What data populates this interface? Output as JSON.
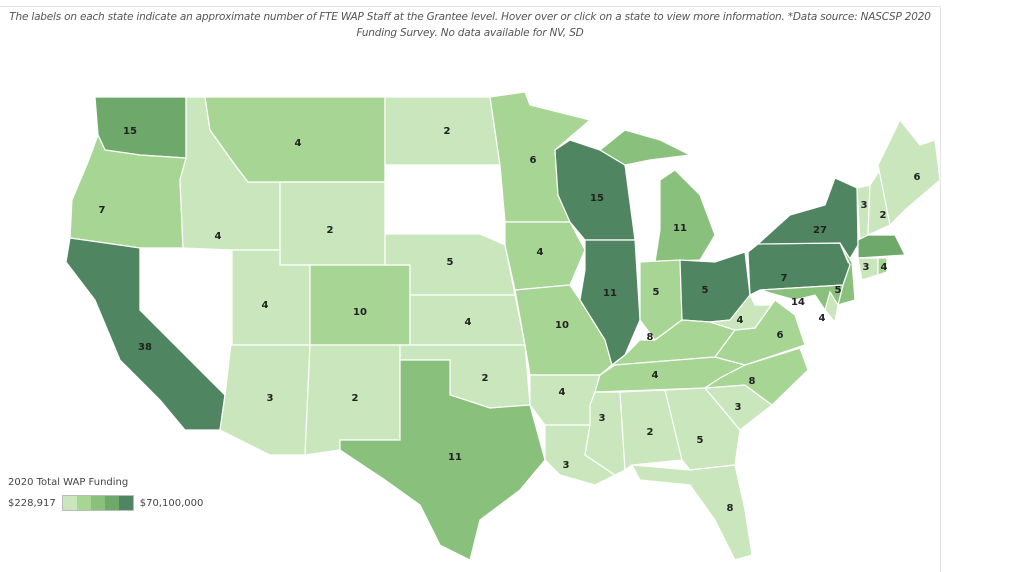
{
  "caption": "The labels on each state indicate an approximate number of FTE WAP Staff at the Grantee level. Hover over or click on a state to view more information. *Data source: NASCSP 2020 Funding Survey. No data available for NV, SD",
  "legend": {
    "title": "2020 Total WAP Funding",
    "min_label": "$228,917",
    "max_label": "$70,100,000",
    "colors": [
      "#c9e6bc",
      "#a6d594",
      "#89c07b",
      "#6ea86b",
      "#4f8560"
    ]
  },
  "no_data_color": "#ffffff",
  "states": [
    {
      "abbr": "WA",
      "label": "15",
      "level": 4
    },
    {
      "abbr": "OR",
      "label": "7",
      "level": 2
    },
    {
      "abbr": "CA",
      "label": "38",
      "level": 5
    },
    {
      "abbr": "NV",
      "label": "",
      "level": 0
    },
    {
      "abbr": "ID",
      "label": "4",
      "level": 1
    },
    {
      "abbr": "MT",
      "label": "4",
      "level": 2
    },
    {
      "abbr": "WY",
      "label": "2",
      "level": 1
    },
    {
      "abbr": "UT",
      "label": "4",
      "level": 1
    },
    {
      "abbr": "CO",
      "label": "10",
      "level": 2
    },
    {
      "abbr": "AZ",
      "label": "3",
      "level": 1
    },
    {
      "abbr": "NM",
      "label": "2",
      "level": 1
    },
    {
      "abbr": "ND",
      "label": "2",
      "level": 1
    },
    {
      "abbr": "SD",
      "label": "",
      "level": 0
    },
    {
      "abbr": "NE",
      "label": "5",
      "level": 1
    },
    {
      "abbr": "KS",
      "label": "4",
      "level": 1
    },
    {
      "abbr": "OK",
      "label": "2",
      "level": 1
    },
    {
      "abbr": "TX",
      "label": "11",
      "level": 3
    },
    {
      "abbr": "MN",
      "label": "6",
      "level": 2
    },
    {
      "abbr": "IA",
      "label": "4",
      "level": 2
    },
    {
      "abbr": "MO",
      "label": "10",
      "level": 2
    },
    {
      "abbr": "AR",
      "label": "4",
      "level": 1
    },
    {
      "abbr": "LA",
      "label": "3",
      "level": 1
    },
    {
      "abbr": "WI",
      "label": "15",
      "level": 5
    },
    {
      "abbr": "IL",
      "label": "11",
      "level": 5
    },
    {
      "abbr": "MI",
      "label": "11",
      "level": 3
    },
    {
      "abbr": "IN",
      "label": "5",
      "level": 2
    },
    {
      "abbr": "OH",
      "label": "5",
      "level": 5
    },
    {
      "abbr": "KY",
      "label": "8",
      "level": 2
    },
    {
      "abbr": "TN",
      "label": "4",
      "level": 2
    },
    {
      "abbr": "MS",
      "label": "3",
      "level": 1
    },
    {
      "abbr": "AL",
      "label": "2",
      "level": 1
    },
    {
      "abbr": "GA",
      "label": "5",
      "level": 1
    },
    {
      "abbr": "FL",
      "label": "8",
      "level": 1
    },
    {
      "abbr": "SC",
      "label": "3",
      "level": 1
    },
    {
      "abbr": "NC",
      "label": "8",
      "level": 2
    },
    {
      "abbr": "VA",
      "label": "6",
      "level": 2
    },
    {
      "abbr": "WV",
      "label": "4",
      "level": 1
    },
    {
      "abbr": "PA",
      "label": "7",
      "level": 5
    },
    {
      "abbr": "NY",
      "label": "27",
      "level": 5
    },
    {
      "abbr": "NJ",
      "label": "5",
      "level": 3
    },
    {
      "abbr": "MD",
      "label": "14",
      "level": 3
    },
    {
      "abbr": "DE",
      "label": "4",
      "level": 1
    },
    {
      "abbr": "VT",
      "label": "3",
      "level": 1
    },
    {
      "abbr": "NH",
      "label": "2",
      "level": 1
    },
    {
      "abbr": "ME",
      "label": "6",
      "level": 1
    },
    {
      "abbr": "MA",
      "label": "",
      "level": 4
    },
    {
      "abbr": "CT",
      "label": "3",
      "level": 1
    },
    {
      "abbr": "RI",
      "label": "4",
      "level": 2
    }
  ]
}
